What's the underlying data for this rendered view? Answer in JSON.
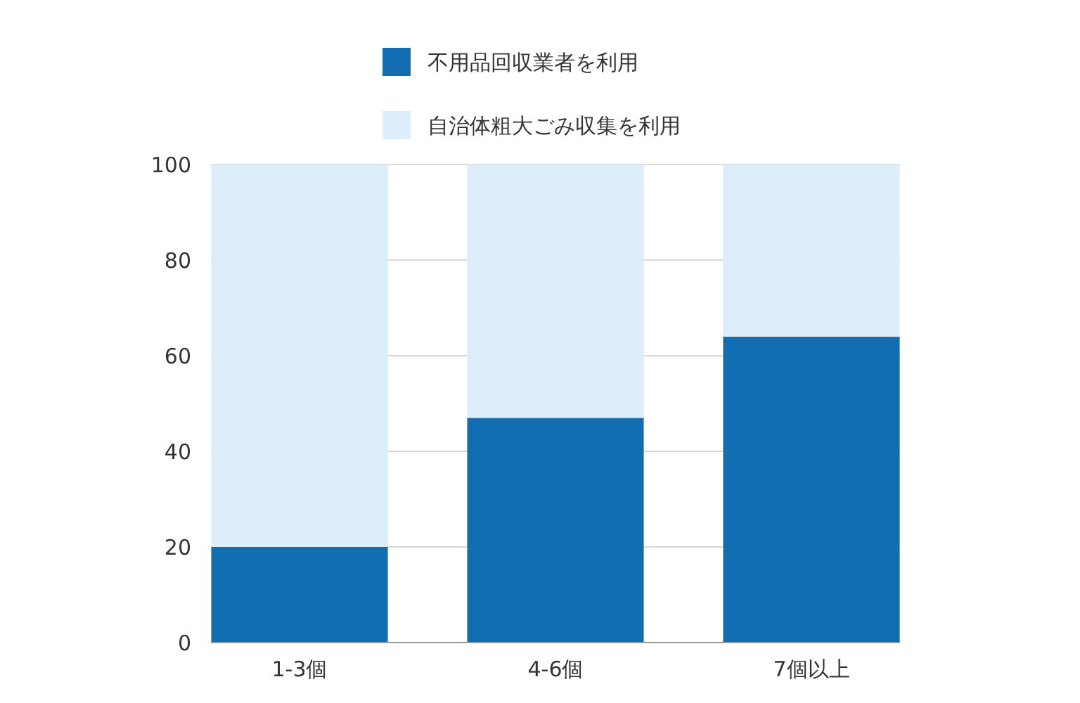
{
  "chart_data": {
    "type": "bar",
    "stacked": true,
    "categories": [
      "1-3個",
      "4-6個",
      "7個以上"
    ],
    "series": [
      {
        "name": "不用品回収業者を利用",
        "color": "#136db3",
        "values": [
          20,
          47,
          64
        ]
      },
      {
        "name": "自治体粗大ごみ収集を利用",
        "color": "#dbeef9",
        "values": [
          80,
          53,
          36
        ]
      }
    ],
    "ylim": [
      0,
      100
    ],
    "yticks": [
      0,
      20,
      40,
      60,
      80,
      100
    ],
    "grid": "y",
    "legend": "top"
  }
}
